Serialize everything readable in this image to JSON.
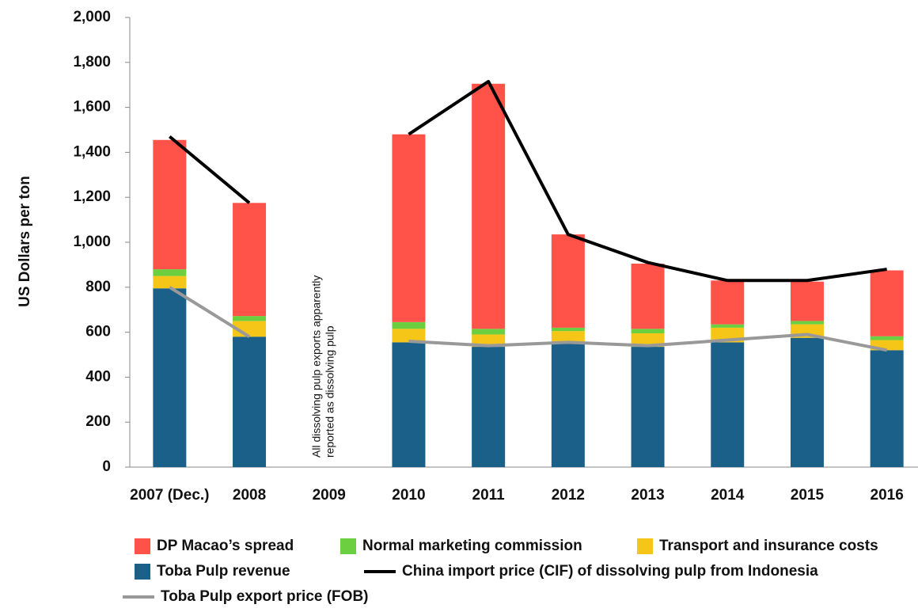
{
  "chart_data": {
    "type": "bar",
    "y_label": "US Dollars per ton",
    "annotation": [
      "All dissolving pulp exports apparently",
      "reported as dissolving pulp"
    ],
    "categories": [
      "2007 (Dec.)",
      "2008",
      "2009",
      "2010",
      "2011",
      "2012",
      "2013",
      "2014",
      "2015",
      "2016"
    ],
    "series": [
      {
        "name": "DP Macao’s spread",
        "type": "bar",
        "color": "#ff5349",
        "values": [
          575,
          503,
          null,
          835,
          1090,
          415,
          290,
          195,
          175,
          293
        ]
      },
      {
        "name": "Normal marketing commission",
        "type": "bar",
        "color": "#6ccf3f",
        "values": [
          30,
          22,
          null,
          30,
          25,
          15,
          20,
          15,
          15,
          17
        ]
      },
      {
        "name": "Transport and insurance costs",
        "type": "bar",
        "color": "#f5c518",
        "values": [
          55,
          70,
          null,
          60,
          55,
          55,
          60,
          65,
          60,
          45
        ]
      },
      {
        "name": "Toba Pulp revenue",
        "type": "bar",
        "color": "#1a6088",
        "values": [
          795,
          580,
          null,
          555,
          535,
          550,
          535,
          555,
          575,
          520
        ]
      },
      {
        "name": "China import price (CIF) of dissolving pulp from Indonesia",
        "type": "line",
        "color": "#000000",
        "values": [
          1470,
          1175,
          null,
          1480,
          1715,
          1035,
          910,
          830,
          830,
          880
        ]
      },
      {
        "name": "Toba Pulp export price (FOB)",
        "type": "line",
        "color": "#999999",
        "values": [
          800,
          580,
          null,
          560,
          540,
          555,
          540,
          565,
          590,
          520
        ]
      }
    ],
    "ylim": [
      0,
      2000
    ],
    "yticks": [
      0,
      200,
      400,
      600,
      800,
      {
        "value": 1000,
        "label": "1,000"
      },
      {
        "value": 1200,
        "label": "1,200"
      },
      {
        "value": 1400,
        "label": "1,400"
      },
      {
        "value": 1600,
        "label": "1,600"
      },
      {
        "value": 1800,
        "label": "1,800"
      },
      {
        "value": 2000,
        "label": "2,000"
      }
    ],
    "grid": false
  }
}
